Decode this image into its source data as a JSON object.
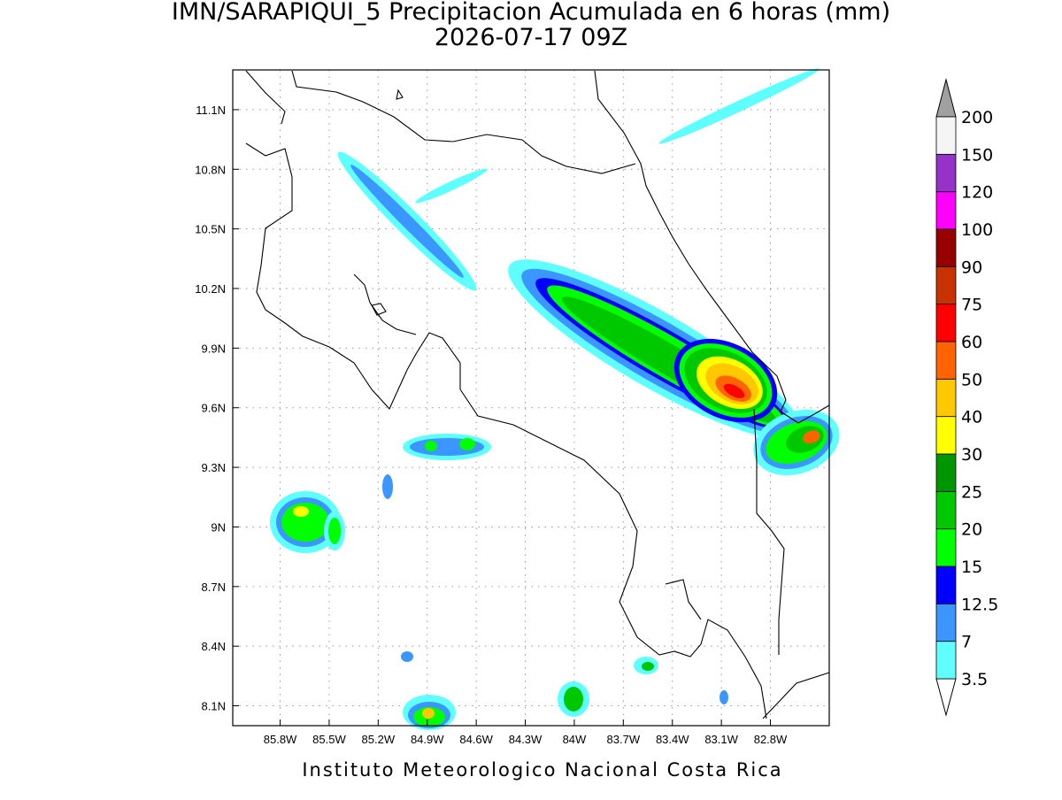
{
  "header": {
    "title": "IMN/SARAPIQUI_5 Precipitacion Acumulada en 6 horas (mm)",
    "subtitle": "2026-07-17 09Z"
  },
  "map": {
    "xlim": [
      -86.09,
      -82.44
    ],
    "ylim": [
      8.0,
      11.3
    ],
    "grid": true,
    "xticks": [
      {
        "value": -85.8,
        "label": "85.8W"
      },
      {
        "value": -85.5,
        "label": "85.5W"
      },
      {
        "value": -85.2,
        "label": "85.2W"
      },
      {
        "value": -84.9,
        "label": "84.9W"
      },
      {
        "value": -84.6,
        "label": "84.6W"
      },
      {
        "value": -84.3,
        "label": "84.3W"
      },
      {
        "value": -84.0,
        "label": "84W"
      },
      {
        "value": -83.7,
        "label": "83.7W"
      },
      {
        "value": -83.4,
        "label": "83.4W"
      },
      {
        "value": -83.1,
        "label": "83.1W"
      },
      {
        "value": -82.8,
        "label": "82.8W"
      }
    ],
    "yticks": [
      {
        "value": 8.1,
        "label": "8.1N"
      },
      {
        "value": 8.4,
        "label": "8.4N"
      },
      {
        "value": 8.7,
        "label": "8.7N"
      },
      {
        "value": 9.0,
        "label": "9N"
      },
      {
        "value": 9.3,
        "label": "9.3N"
      },
      {
        "value": 9.6,
        "label": "9.6N"
      },
      {
        "value": 9.9,
        "label": "9.9N"
      },
      {
        "value": 10.2,
        "label": "10.2N"
      },
      {
        "value": 10.5,
        "label": "10.5N"
      },
      {
        "value": 10.8,
        "label": "10.8N"
      },
      {
        "value": 11.1,
        "label": "11.1N"
      }
    ]
  },
  "colorbar": {
    "levels": [
      3.5,
      7,
      12.5,
      15,
      20,
      25,
      30,
      40,
      50,
      60,
      75,
      90,
      100,
      120,
      150,
      200
    ],
    "colors": [
      "#60ffff",
      "#3c96ff",
      "#0000ff",
      "#00ff00",
      "#00c800",
      "#009600",
      "#ffff00",
      "#ffc800",
      "#ff6400",
      "#ff0000",
      "#c83200",
      "#960000",
      "#ff00ff",
      "#9632c8",
      "#f5f5f5"
    ]
  },
  "footer": "Instituto Meteorologico Nacional Costa Rica"
}
